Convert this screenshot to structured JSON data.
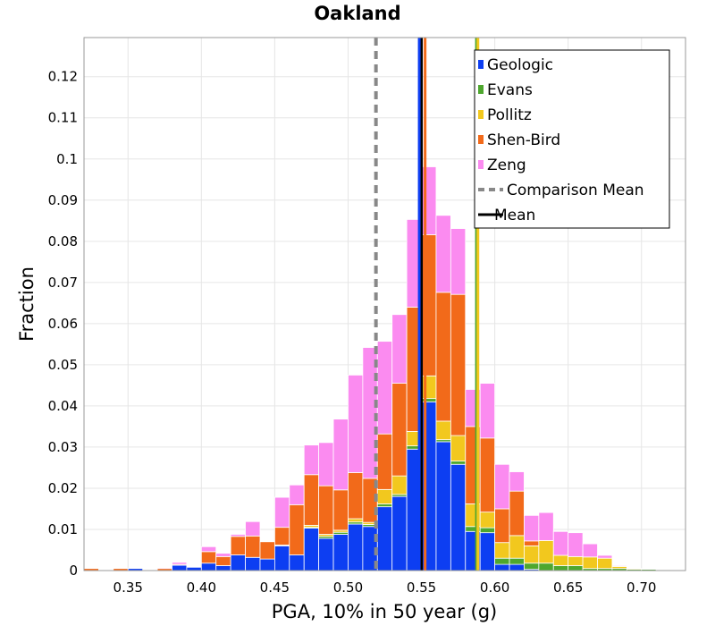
{
  "chart_data": {
    "type": "bar",
    "stacked": true,
    "title": "Oakland",
    "xlabel": "PGA, 10% in 50 year (g)",
    "ylabel": "Fraction",
    "xlim": [
      0.32,
      0.73
    ],
    "ylim": [
      0,
      0.1295
    ],
    "bin_width": 0.01,
    "grid": true,
    "legend_position": "top-right",
    "x_ticks": [
      "0.35",
      "0.40",
      "0.45",
      "0.50",
      "0.55",
      "0.60",
      "0.65",
      "0.70"
    ],
    "y_ticks": [
      "0",
      "0.01",
      "0.02",
      "0.03",
      "0.04",
      "0.05",
      "0.06",
      "0.07",
      "0.08",
      "0.09",
      "0.1",
      "0.11",
      "0.12"
    ],
    "bins": [
      0.325,
      0.345,
      0.355,
      0.375,
      0.385,
      0.395,
      0.405,
      0.415,
      0.425,
      0.435,
      0.445,
      0.455,
      0.465,
      0.475,
      0.485,
      0.495,
      0.505,
      0.515,
      0.525,
      0.535,
      0.545,
      0.555,
      0.565,
      0.575,
      0.585,
      0.595,
      0.605,
      0.615,
      0.625,
      0.635,
      0.645,
      0.655,
      0.665,
      0.675,
      0.685,
      0.695,
      0.705,
      0.715,
      0.725
    ],
    "series": [
      {
        "name": "Geologic",
        "color": "#0d3ef2",
        "values": [
          0,
          0,
          0.0005,
          0,
          0.0013,
          0.0008,
          0.0018,
          0.0012,
          0.0038,
          0.0032,
          0.0028,
          0.006,
          0.0038,
          0.0103,
          0.0078,
          0.0088,
          0.0113,
          0.0107,
          0.0155,
          0.018,
          0.0295,
          0.041,
          0.0313,
          0.0258,
          0.0095,
          0.0092,
          0.0015,
          0.0015,
          0.0003,
          0,
          0,
          0,
          0,
          0,
          0,
          0,
          0,
          0,
          0
        ]
      },
      {
        "name": "Evans",
        "color": "#4ea72e",
        "values": [
          0,
          0,
          0,
          0,
          0,
          0,
          0,
          0,
          0,
          0,
          0,
          0.0002,
          0,
          0.0002,
          0.0005,
          0.0005,
          0.0005,
          0.0005,
          0.0007,
          0.0005,
          0.0008,
          0.0008,
          0.0005,
          0.0008,
          0.0012,
          0.0012,
          0.0015,
          0.0015,
          0.0015,
          0.0018,
          0.0012,
          0.0012,
          0.0005,
          0.0005,
          0.0005,
          0.0003,
          0.0003,
          0.0002,
          0
        ]
      },
      {
        "name": "Pollitz",
        "color": "#f2c81e",
        "values": [
          0,
          0,
          0,
          0,
          0,
          0,
          0,
          0,
          0,
          0,
          0,
          0,
          0,
          0.0005,
          0.0005,
          0.0005,
          0.0008,
          0.0005,
          0.0035,
          0.0045,
          0.0035,
          0.0055,
          0.0045,
          0.0062,
          0.0055,
          0.0038,
          0.0038,
          0.0055,
          0.0042,
          0.0055,
          0.0025,
          0.0022,
          0.0028,
          0.0025,
          0.0005,
          0.0002,
          0,
          0,
          0
        ]
      },
      {
        "name": "Shen-Bird",
        "color": "#f26a1a",
        "values": [
          0.0005,
          0.0005,
          0,
          0.0005,
          0.0002,
          0,
          0.0028,
          0.0022,
          0.0045,
          0.0052,
          0.0042,
          0.0043,
          0.0122,
          0.0123,
          0.0118,
          0.0098,
          0.0112,
          0.0107,
          0.0135,
          0.0225,
          0.0302,
          0.0343,
          0.0313,
          0.0343,
          0.0188,
          0.018,
          0.0082,
          0.0108,
          0.0012,
          0,
          0,
          0,
          0,
          0,
          0,
          0,
          0,
          0,
          0
        ]
      },
      {
        "name": "Zeng",
        "color": "#fb8bf0",
        "values": [
          0,
          0,
          0,
          0.0002,
          0.0005,
          0,
          0.0012,
          0.0008,
          0.0005,
          0.0035,
          0.0,
          0.0073,
          0.0048,
          0.0072,
          0.0105,
          0.0172,
          0.0237,
          0.0318,
          0.0225,
          0.0167,
          0.0213,
          0.0165,
          0.0187,
          0.016,
          0.009,
          0.0133,
          0.0108,
          0.0047,
          0.0062,
          0.0068,
          0.0058,
          0.0058,
          0.0032,
          0.0007,
          0.0002,
          0,
          0,
          0,
          0
        ]
      }
    ],
    "vertical_lines": [
      {
        "name": "Comparison Mean",
        "x": 0.519,
        "color": "#888888",
        "style": "dashed",
        "legend": true
      },
      {
        "name": "Mean",
        "x": 0.55,
        "color": "#000000",
        "style": "solid",
        "legend": true
      },
      {
        "name": "Geologic mean",
        "x": 0.5485,
        "color": "#0d3ef2",
        "style": "solid",
        "legend": false
      },
      {
        "name": "Shen-Bird mean",
        "x": 0.5525,
        "color": "#f26a1a",
        "style": "solid",
        "legend": false
      },
      {
        "name": "Evans mean",
        "x": 0.5875,
        "color": "#4ea72e",
        "style": "solid",
        "legend": false
      },
      {
        "name": "Pollitz mean",
        "x": 0.5885,
        "color": "#f2c81e",
        "style": "solid",
        "legend": false
      }
    ]
  }
}
